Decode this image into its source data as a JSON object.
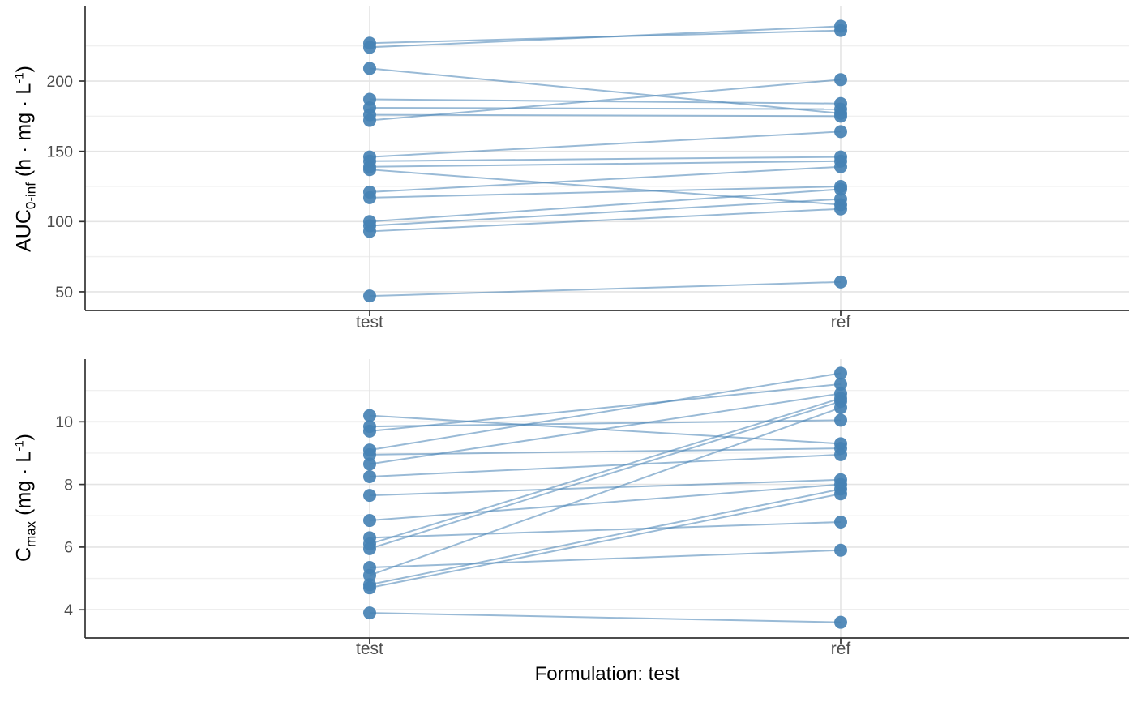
{
  "figure": {
    "background": "#ffffff",
    "point_color": "#4682B4",
    "line_color": "#4682B4",
    "line_opacity": 0.55,
    "grid_major_color": "#e4e4e4",
    "grid_minor_color": "#f0f0f0",
    "axis_line_color": "#333333",
    "tick_color": "#333333",
    "tick_label_color": "#4d4d4d"
  },
  "footer": {
    "xlabel": "Formulation: test"
  },
  "chart_data": [
    {
      "type": "line",
      "subtype": "paired-scatter",
      "title": "",
      "xlabel": "",
      "ylabel": "AUC0-inf (h mg L-1)",
      "ylabel_rich": {
        "main": "AUC",
        "sub": "0-inf",
        "unit_open": "  (h · mg · L",
        "sup": "-1",
        "unit_close": ")"
      },
      "categories": [
        "test",
        "ref"
      ],
      "ylim": [
        36.7,
        253.1
      ],
      "yticks_major": [
        50,
        100,
        150,
        200
      ],
      "yticks_minor": [
        75,
        125,
        175,
        225
      ],
      "grid": true,
      "legend": "none",
      "pairs": [
        {
          "test": 227,
          "ref": 236
        },
        {
          "test": 224,
          "ref": 239
        },
        {
          "test": 209,
          "ref": 177
        },
        {
          "test": 187,
          "ref": 184
        },
        {
          "test": 181,
          "ref": 180
        },
        {
          "test": 176,
          "ref": 175
        },
        {
          "test": 172,
          "ref": 201
        },
        {
          "test": 146,
          "ref": 164
        },
        {
          "test": 143,
          "ref": 146
        },
        {
          "test": 139,
          "ref": 143
        },
        {
          "test": 137,
          "ref": 112
        },
        {
          "test": 121,
          "ref": 139
        },
        {
          "test": 117,
          "ref": 125
        },
        {
          "test": 100,
          "ref": 123
        },
        {
          "test": 97,
          "ref": 116
        },
        {
          "test": 93,
          "ref": 109
        },
        {
          "test": 47,
          "ref": 57
        }
      ]
    },
    {
      "type": "line",
      "subtype": "paired-scatter",
      "title": "",
      "xlabel": "Formulation: test",
      "ylabel": "Cmax (mg L-1)",
      "ylabel_rich": {
        "main": "C",
        "sub": "max",
        "unit_open": "  (mg · L",
        "sup": "-1",
        "unit_close": ")"
      },
      "categories": [
        "test",
        "ref"
      ],
      "ylim": [
        3.1,
        12.0
      ],
      "yticks_major": [
        4,
        6,
        8,
        10
      ],
      "yticks_minor": [
        5,
        7,
        9,
        11
      ],
      "grid": true,
      "legend": "none",
      "pairs": [
        {
          "test": 10.2,
          "ref": 9.3
        },
        {
          "test": 9.85,
          "ref": 10.05
        },
        {
          "test": 9.7,
          "ref": 11.2
        },
        {
          "test": 9.1,
          "ref": 11.55
        },
        {
          "test": 8.95,
          "ref": 9.15
        },
        {
          "test": 8.65,
          "ref": 10.9
        },
        {
          "test": 8.25,
          "ref": 8.95
        },
        {
          "test": 7.65,
          "ref": 8.15
        },
        {
          "test": 6.85,
          "ref": 8.0
        },
        {
          "test": 6.3,
          "ref": 6.8
        },
        {
          "test": 6.1,
          "ref": 10.75
        },
        {
          "test": 5.95,
          "ref": 10.65
        },
        {
          "test": 5.35,
          "ref": 5.9
        },
        {
          "test": 5.1,
          "ref": 10.45
        },
        {
          "test": 4.8,
          "ref": 7.85
        },
        {
          "test": 4.7,
          "ref": 7.7
        },
        {
          "test": 3.9,
          "ref": 3.6
        }
      ]
    }
  ]
}
